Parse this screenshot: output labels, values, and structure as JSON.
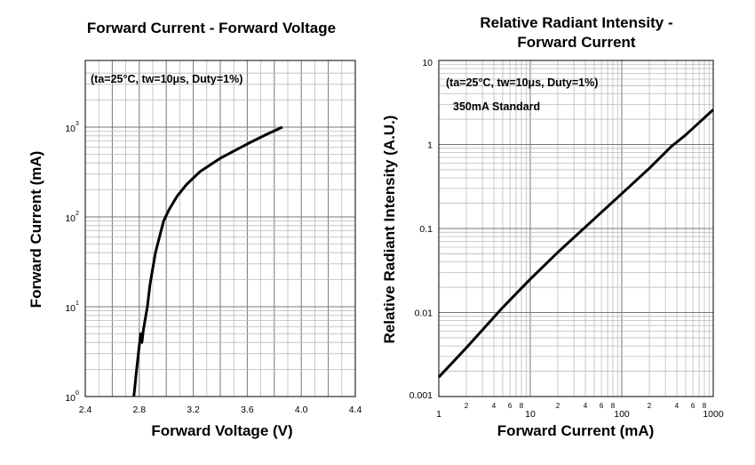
{
  "chart_data": [
    {
      "type": "line",
      "title": "Forward Current - Forward Voltage",
      "xlabel": "Forward Voltage (V)",
      "ylabel": "Forward Current (mA)",
      "xscale": "linear",
      "yscale": "log",
      "xlim": [
        2.4,
        4.4
      ],
      "ylim": [
        1,
        5000
      ],
      "xticks": [
        "2.4",
        "2.8",
        "3.2",
        "3.6",
        "4.0",
        "4.4"
      ],
      "yticks": [
        {
          "base": "10",
          "exp": "0"
        },
        {
          "base": "10",
          "exp": "1"
        },
        {
          "base": "10",
          "exp": "2"
        },
        {
          "base": "10",
          "exp": "3"
        }
      ],
      "grid": true,
      "annotations": [
        "(ta=25°C, tw=10μs, Duty=1%)"
      ],
      "series": [
        {
          "x": [
            2.76,
            2.78,
            2.81,
            2.82,
            2.83,
            2.86,
            2.88,
            2.92,
            2.95,
            2.98,
            3.02,
            3.08,
            3.15,
            3.25,
            3.4,
            3.6,
            3.75,
            3.86
          ],
          "y": [
            1,
            2,
            5,
            4,
            5.5,
            10,
            18,
            40,
            60,
            90,
            120,
            170,
            230,
            320,
            450,
            650,
            840,
            1000
          ]
        }
      ]
    },
    {
      "type": "line",
      "title": "Relative Radiant Intensity - Forward Current",
      "xlabel": "Forward Current (mA)",
      "ylabel": "Relative Radiant Intensity (A.U.)",
      "xscale": "log",
      "yscale": "log",
      "xlim": [
        1,
        1000
      ],
      "ylim": [
        0.001,
        10
      ],
      "xticks_major": [
        "1",
        "10",
        "100",
        "1000"
      ],
      "xticks_minor": [
        "2",
        "4",
        "6",
        "8"
      ],
      "yticks": [
        "0.001",
        "0.01",
        "0.1",
        "1",
        "10"
      ],
      "grid": true,
      "annotations": [
        "(ta=25°C, tw=10μs, Duty=1%)",
        "350mA Standard"
      ],
      "series": [
        {
          "x": [
            1,
            2,
            5,
            10,
            20,
            50,
            100,
            200,
            350,
            500,
            1000
          ],
          "y": [
            0.0017,
            0.0038,
            0.0115,
            0.025,
            0.052,
            0.13,
            0.26,
            0.52,
            0.95,
            1.3,
            2.6
          ]
        }
      ]
    }
  ]
}
